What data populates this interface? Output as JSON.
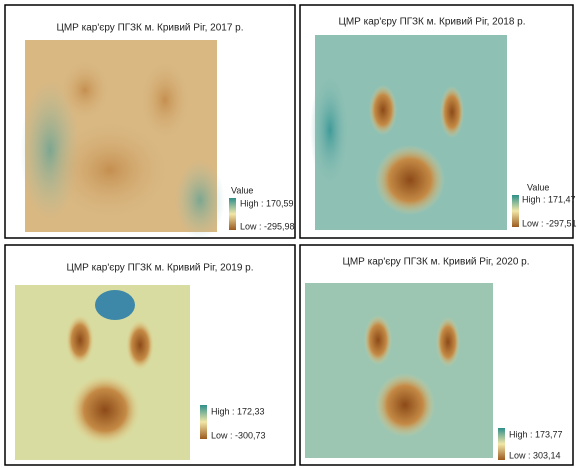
{
  "panels": [
    {
      "title": "ЦМР кар'єру ПГЗК м. Кривий Ріг, 2017 р.",
      "legend": {
        "title": "Value",
        "high": "High : 170,59",
        "low": "Low : -295,98"
      }
    },
    {
      "title": "ЦМР кар'єру ПГЗК м. Кривий Ріг, 2018 р.",
      "legend": {
        "title": "Value",
        "high": "High : 171,47",
        "low": "Low : -297,51"
      }
    },
    {
      "title": "ЦМР кар'єру ПГЗК м. Кривий Ріг, 2019 р.",
      "legend": {
        "high": "High : 172,33",
        "low": "Low : -300,73"
      }
    },
    {
      "title": "ЦМР кар'єру ПГЗК м. Кривий Ріг, 2020 р.",
      "legend": {
        "high": "High : 173,77",
        "low": "Low : 303,14"
      }
    }
  ]
}
